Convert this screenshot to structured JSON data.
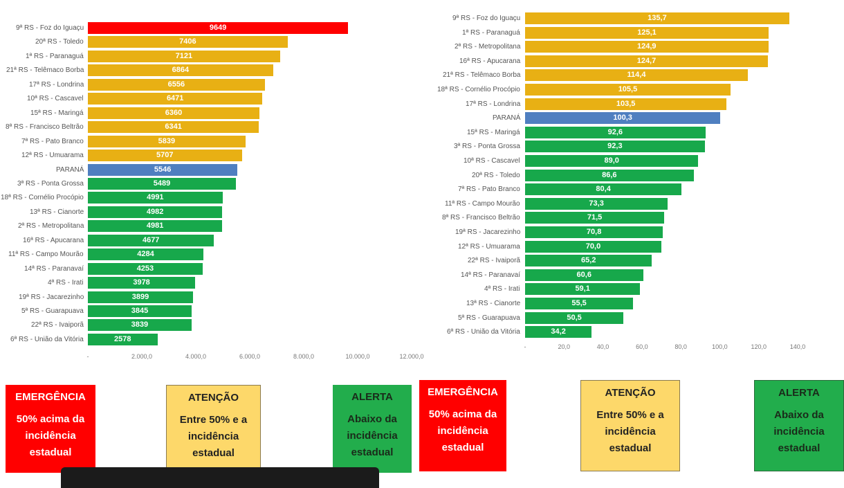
{
  "chart_data": [
    {
      "type": "bar",
      "orientation": "horizontal",
      "categories": [
        "9ª RS - Foz do Iguaçu",
        "20ª RS - Toledo",
        "1ª RS - Paranaguá",
        "21ª RS - Telêmaco Borba",
        "17ª RS - Londrina",
        "10ª RS - Cascavel",
        "15ª RS - Maringá",
        "8ª RS - Francisco Beltrão",
        "7ª RS - Pato Branco",
        "12ª RS - Umuarama",
        "PARANÁ",
        "3ª RS - Ponta Grossa",
        "18ª RS - Cornélio Procópio",
        "13ª RS - Cianorte",
        "2ª RS - Metropolitana",
        "16ª RS - Apucarana",
        "11ª RS - Campo Mourão",
        "14ª RS - Paranavaí",
        "4ª RS - Irati",
        "19ª RS - Jacarezinho",
        "5ª RS - Guarapuava",
        "22ª RS - Ivaiporã",
        "6ª RS - União da Vitória"
      ],
      "values": [
        9649,
        7406,
        7121,
        6864,
        6556,
        6471,
        6360,
        6341,
        5839,
        5707,
        5546,
        5489,
        4991,
        4982,
        4981,
        4677,
        4284,
        4253,
        3978,
        3899,
        3845,
        3839,
        2578
      ],
      "data_labels": [
        "9649",
        "7406",
        "7121",
        "6864",
        "6556",
        "6471",
        "6360",
        "6341",
        "5839",
        "5707",
        "5546",
        "5489",
        "4991",
        "4982",
        "4981",
        "4677",
        "4284",
        "4253",
        "3978",
        "3899",
        "3845",
        "3839",
        "2578"
      ],
      "bar_colors": [
        "#ff0000",
        "#e8b014",
        "#e8b014",
        "#e8b014",
        "#e8b014",
        "#e8b014",
        "#e8b014",
        "#e8b014",
        "#e8b014",
        "#e8b014",
        "#4f7fc0",
        "#17a84b",
        "#17a84b",
        "#17a84b",
        "#17a84b",
        "#17a84b",
        "#17a84b",
        "#17a84b",
        "#17a84b",
        "#17a84b",
        "#17a84b",
        "#17a84b",
        "#17a84b"
      ],
      "xlim": [
        0,
        12000
      ],
      "x_ticks": [
        0,
        2000,
        4000,
        6000,
        8000,
        10000,
        12000
      ],
      "x_tick_labels": [
        "-",
        "2.000,0",
        "4.000,0",
        "6.000,0",
        "8.000,0",
        "10.000,0",
        "12.000,0"
      ],
      "grid": false
    },
    {
      "type": "bar",
      "orientation": "horizontal",
      "categories": [
        "9ª RS - Foz do Iguaçu",
        "1ª RS - Paranaguá",
        "2ª RS - Metropolitana",
        "16ª RS - Apucarana",
        "21ª RS - Telêmaco Borba",
        "18ª RS - Cornélio Procópio",
        "17ª RS - Londrina",
        "PARANÁ",
        "15ª RS - Maringá",
        "3ª RS - Ponta Grossa",
        "10ª RS - Cascavel",
        "20ª RS - Toledo",
        "7ª RS - Pato Branco",
        "11ª RS - Campo Mourão",
        "8ª RS - Francisco Beltrão",
        "19ª RS - Jacarezinho",
        "12ª RS - Umuarama",
        "22ª RS - Ivaiporã",
        "14ª RS - Paranavaí",
        "4ª RS - Irati",
        "13ª RS - Cianorte",
        "5ª RS - Guarapuava",
        "6ª RS - União da Vitória"
      ],
      "values": [
        135.7,
        125.1,
        124.9,
        124.7,
        114.4,
        105.5,
        103.5,
        100.3,
        92.6,
        92.3,
        89.0,
        86.6,
        80.4,
        73.3,
        71.5,
        70.8,
        70.0,
        65.2,
        60.6,
        59.1,
        55.5,
        50.5,
        34.2
      ],
      "data_labels": [
        "135,7",
        "125,1",
        "124,9",
        "124,7",
        "114,4",
        "105,5",
        "103,5",
        "100,3",
        "92,6",
        "92,3",
        "89,0",
        "86,6",
        "80,4",
        "73,3",
        "71,5",
        "70,8",
        "70,0",
        "65,2",
        "60,6",
        "59,1",
        "55,5",
        "50,5",
        "34,2"
      ],
      "bar_colors": [
        "#e8b014",
        "#e8b014",
        "#e8b014",
        "#e8b014",
        "#e8b014",
        "#e8b014",
        "#e8b014",
        "#4f7fc0",
        "#17a84b",
        "#17a84b",
        "#17a84b",
        "#17a84b",
        "#17a84b",
        "#17a84b",
        "#17a84b",
        "#17a84b",
        "#17a84b",
        "#17a84b",
        "#17a84b",
        "#17a84b",
        "#17a84b",
        "#17a84b",
        "#17a84b"
      ],
      "xlim": [
        0,
        140
      ],
      "x_ticks": [
        0,
        20,
        40,
        60,
        80,
        100,
        120,
        140
      ],
      "x_tick_labels": [
        "-",
        "20,0",
        "40,0",
        "60,0",
        "80,0",
        "100,0",
        "120,0",
        "140,0"
      ],
      "grid": false
    }
  ],
  "legend_left": {
    "emergencia": {
      "title": "EMERGÊNCIA",
      "desc": "50% acima da\nincidência\nestadual",
      "color": "#ff0000"
    },
    "atencao": {
      "title": "ATENÇÃO",
      "desc": "Entre 50% e a\nincidência\nestadual",
      "color": "#fdd86a"
    },
    "alerta": {
      "title": "ALERTA",
      "desc": "Abaixo da\nincidência\nestadual",
      "color": "#22ad4c"
    }
  },
  "legend_right": {
    "emergencia": {
      "title": "EMERGÊNCIA",
      "desc": "50% acima da\nincidência\nestadual",
      "color": "#ff0000"
    },
    "atencao": {
      "title": "ATENÇÃO",
      "desc": "Entre 50% e a\nincidência\nestadual",
      "color": "#fdd86a"
    },
    "alerta": {
      "title": "ALERTA",
      "desc": "Abaixo da\nincidência\nestadual",
      "color": "#22ad4c"
    }
  }
}
